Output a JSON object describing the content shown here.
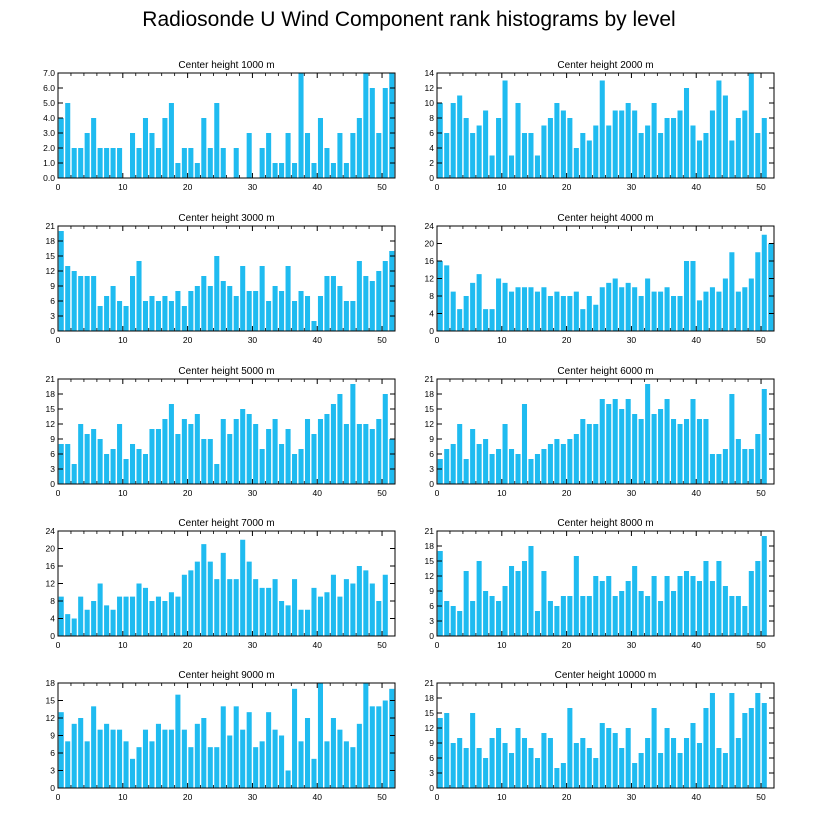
{
  "title": "Radiosonde U Wind Component rank histograms by level",
  "colors": {
    "bar": "#1fbbf0",
    "axis": "#000000",
    "background": "#ffffff"
  },
  "chart_data": [
    {
      "type": "bar",
      "title": "Center height 1000 m",
      "xlim": [
        0,
        52
      ],
      "xticks": [
        0,
        10,
        20,
        30,
        40,
        50
      ],
      "ylim": [
        0,
        7
      ],
      "yticks": [
        0,
        1,
        2,
        3,
        4,
        5,
        6,
        7
      ],
      "ytick_labels": [
        "0.0",
        "1.0",
        "2.0",
        "3.0",
        "4.0",
        "5.0",
        "6.0",
        "7.0"
      ],
      "values": [
        4,
        5,
        2,
        2,
        3,
        4,
        2,
        2,
        2,
        2,
        0,
        3,
        2,
        4,
        3,
        2,
        4,
        5,
        1,
        2,
        2,
        1,
        4,
        2,
        5,
        2,
        0,
        2,
        0,
        3,
        0,
        2,
        3,
        1,
        1,
        3,
        1,
        7,
        3,
        1,
        4,
        2,
        1,
        3,
        1,
        3,
        4,
        7,
        6,
        3,
        6,
        7
      ]
    },
    {
      "type": "bar",
      "title": "Center height 2000 m",
      "xlim": [
        0,
        52
      ],
      "xticks": [
        0,
        10,
        20,
        30,
        40,
        50
      ],
      "ylim": [
        0,
        14
      ],
      "yticks": [
        0,
        2,
        4,
        6,
        8,
        10,
        12,
        14
      ],
      "ytick_labels": [
        "0",
        "2",
        "4",
        "6",
        "8",
        "10",
        "12",
        "14"
      ],
      "values": [
        10,
        6,
        10,
        11,
        8,
        6,
        7,
        9,
        3,
        8,
        13,
        3,
        10,
        6,
        6,
        3,
        7,
        8,
        10,
        9,
        8,
        4,
        6,
        5,
        7,
        13,
        7,
        9,
        9,
        10,
        9,
        6,
        7,
        10,
        6,
        8,
        8,
        9,
        12,
        7,
        5,
        6,
        9,
        13,
        11,
        5,
        8,
        9,
        14,
        6,
        8,
        0
      ]
    },
    {
      "type": "bar",
      "title": "Center height 3000 m",
      "xlim": [
        0,
        52
      ],
      "xticks": [
        0,
        10,
        20,
        30,
        40,
        50
      ],
      "ylim": [
        0,
        21
      ],
      "yticks": [
        0,
        3,
        6,
        9,
        12,
        15,
        18,
        21
      ],
      "ytick_labels": [
        "0",
        "3",
        "6",
        "9",
        "12",
        "15",
        "18",
        "21"
      ],
      "values": [
        20,
        13,
        12,
        11,
        11,
        11,
        5,
        7,
        9,
        6,
        5,
        11,
        14,
        6,
        7,
        6,
        7,
        6,
        8,
        5,
        8,
        9,
        11,
        9,
        15,
        10,
        9,
        7,
        13,
        8,
        8,
        13,
        6,
        9,
        8,
        13,
        6,
        8,
        7,
        2,
        7,
        11,
        11,
        9,
        6,
        6,
        14,
        11,
        10,
        12,
        14,
        16
      ]
    },
    {
      "type": "bar",
      "title": "Center height 4000 m",
      "xlim": [
        0,
        52
      ],
      "xticks": [
        0,
        10,
        20,
        30,
        40,
        50
      ],
      "ylim": [
        0,
        24
      ],
      "yticks": [
        0,
        4,
        8,
        12,
        16,
        20,
        24
      ],
      "ytick_labels": [
        "0",
        "4",
        "8",
        "12",
        "16",
        "20",
        "24"
      ],
      "values": [
        16,
        15,
        9,
        5,
        8,
        11,
        13,
        5,
        5,
        12,
        11,
        9,
        10,
        10,
        10,
        9,
        10,
        8,
        9,
        8,
        8,
        9,
        5,
        8,
        6,
        10,
        11,
        12,
        10,
        11,
        10,
        8,
        12,
        9,
        9,
        10,
        8,
        8,
        16,
        16,
        7,
        9,
        10,
        9,
        12,
        18,
        9,
        10,
        12,
        18,
        22,
        20
      ]
    },
    {
      "type": "bar",
      "title": "Center height 5000 m",
      "xlim": [
        0,
        52
      ],
      "xticks": [
        0,
        10,
        20,
        30,
        40,
        50
      ],
      "ylim": [
        0,
        21
      ],
      "yticks": [
        0,
        3,
        6,
        9,
        12,
        15,
        18,
        21
      ],
      "ytick_labels": [
        "0",
        "3",
        "6",
        "9",
        "12",
        "15",
        "18",
        "21"
      ],
      "values": [
        8,
        8,
        4,
        12,
        10,
        11,
        9,
        6,
        7,
        12,
        5,
        8,
        7,
        6,
        11,
        11,
        13,
        16,
        10,
        13,
        12,
        14,
        9,
        9,
        4,
        13,
        10,
        13,
        15,
        14,
        12,
        7,
        11,
        13,
        8,
        11,
        6,
        7,
        13,
        10,
        13,
        14,
        16,
        18,
        12,
        20,
        12,
        12,
        11,
        13,
        18,
        9
      ]
    },
    {
      "type": "bar",
      "title": "Center height 6000 m",
      "xlim": [
        0,
        52
      ],
      "xticks": [
        0,
        10,
        20,
        30,
        40,
        50
      ],
      "ylim": [
        0,
        21
      ],
      "yticks": [
        0,
        3,
        6,
        9,
        12,
        15,
        18,
        21
      ],
      "ytick_labels": [
        "0",
        "3",
        "6",
        "9",
        "12",
        "15",
        "18",
        "21"
      ],
      "values": [
        5,
        7,
        8,
        12,
        5,
        11,
        8,
        9,
        6,
        7,
        12,
        7,
        6,
        16,
        5,
        6,
        7,
        8,
        9,
        8,
        9,
        10,
        13,
        12,
        12,
        17,
        16,
        17,
        15,
        17,
        14,
        13,
        20,
        14,
        15,
        17,
        13,
        12,
        13,
        17,
        13,
        13,
        6,
        6,
        7,
        18,
        9,
        7,
        7,
        10,
        19,
        0
      ]
    },
    {
      "type": "bar",
      "title": "Center height 7000 m",
      "xlim": [
        0,
        52
      ],
      "xticks": [
        0,
        10,
        20,
        30,
        40,
        50
      ],
      "ylim": [
        0,
        24
      ],
      "yticks": [
        0,
        4,
        8,
        12,
        16,
        20,
        24
      ],
      "ytick_labels": [
        "0",
        "4",
        "8",
        "12",
        "16",
        "20",
        "24"
      ],
      "values": [
        9,
        5,
        4,
        9,
        6,
        8,
        12,
        7,
        6,
        9,
        9,
        9,
        12,
        11,
        8,
        9,
        8,
        10,
        9,
        14,
        15,
        17,
        21,
        17,
        13,
        19,
        13,
        13,
        22,
        17,
        13,
        11,
        11,
        13,
        8,
        7,
        13,
        6,
        6,
        11,
        9,
        10,
        14,
        9,
        13,
        12,
        16,
        15,
        12,
        8,
        14,
        0
      ]
    },
    {
      "type": "bar",
      "title": "Center height 8000 m",
      "xlim": [
        0,
        52
      ],
      "xticks": [
        0,
        10,
        20,
        30,
        40,
        50
      ],
      "ylim": [
        0,
        21
      ],
      "yticks": [
        0,
        3,
        6,
        9,
        12,
        15,
        18,
        21
      ],
      "ytick_labels": [
        "0",
        "3",
        "6",
        "9",
        "12",
        "15",
        "18",
        "21"
      ],
      "values": [
        17,
        7,
        6,
        5,
        13,
        7,
        15,
        9,
        8,
        7,
        10,
        14,
        13,
        15,
        18,
        5,
        13,
        7,
        6,
        8,
        8,
        16,
        8,
        8,
        12,
        11,
        12,
        8,
        9,
        11,
        14,
        9,
        8,
        12,
        7,
        12,
        9,
        12,
        13,
        12,
        11,
        15,
        11,
        15,
        10,
        8,
        8,
        6,
        13,
        15,
        20,
        0
      ]
    },
    {
      "type": "bar",
      "title": "Center height 9000 m",
      "xlim": [
        0,
        52
      ],
      "xticks": [
        0,
        10,
        20,
        30,
        40,
        50
      ],
      "ylim": [
        0,
        18
      ],
      "yticks": [
        0,
        3,
        6,
        9,
        12,
        15,
        18
      ],
      "ytick_labels": [
        "0",
        "3",
        "6",
        "9",
        "12",
        "15",
        "18"
      ],
      "values": [
        13,
        8,
        11,
        12,
        8,
        14,
        10,
        11,
        10,
        10,
        8,
        5,
        7,
        10,
        8,
        11,
        10,
        10,
        16,
        10,
        7,
        11,
        12,
        7,
        7,
        14,
        9,
        14,
        10,
        13,
        7,
        8,
        13,
        10,
        9,
        3,
        17,
        8,
        12,
        5,
        18,
        8,
        12,
        10,
        8,
        7,
        11,
        18,
        14,
        14,
        15,
        17
      ]
    },
    {
      "type": "bar",
      "title": "Center height 10000 m",
      "xlim": [
        0,
        52
      ],
      "xticks": [
        0,
        10,
        20,
        30,
        40,
        50
      ],
      "ylim": [
        0,
        21
      ],
      "yticks": [
        0,
        3,
        6,
        9,
        12,
        15,
        18,
        21
      ],
      "ytick_labels": [
        "0",
        "3",
        "6",
        "9",
        "12",
        "15",
        "18",
        "21"
      ],
      "values": [
        14,
        15,
        9,
        10,
        8,
        15,
        8,
        6,
        10,
        12,
        9,
        7,
        12,
        10,
        8,
        6,
        11,
        10,
        4,
        5,
        16,
        9,
        10,
        8,
        6,
        13,
        12,
        11,
        8,
        12,
        5,
        7,
        10,
        16,
        7,
        12,
        10,
        7,
        10,
        13,
        9,
        16,
        19,
        8,
        7,
        19,
        10,
        15,
        16,
        19,
        17,
        0
      ]
    }
  ]
}
